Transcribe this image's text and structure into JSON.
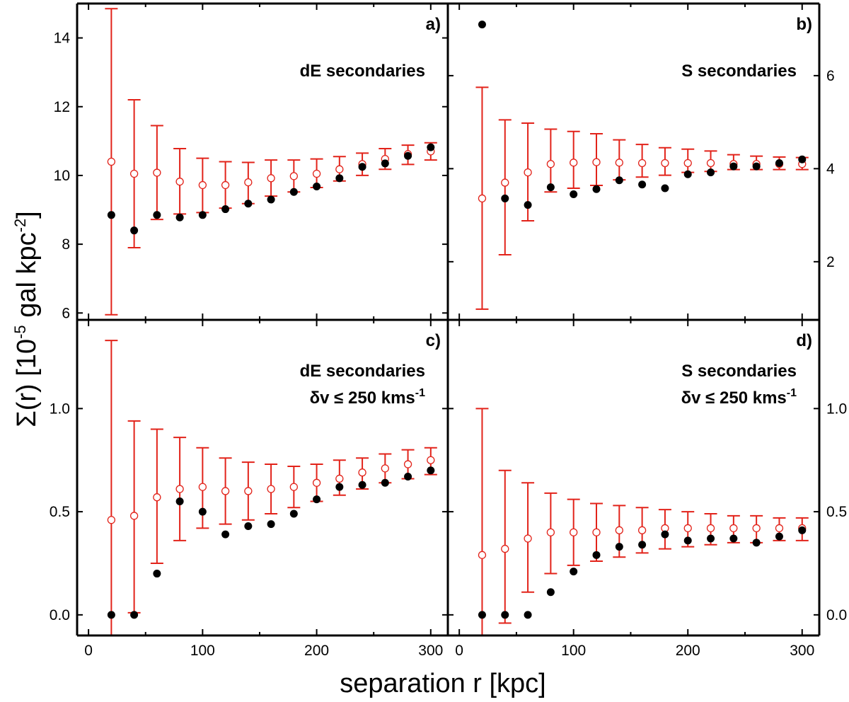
{
  "chart_data": {
    "type": "scatter",
    "xlabel": "separation r [kpc]",
    "ylabel": "Σ(r) [10⁻⁵ gal kpc⁻²]",
    "ylabel_parts": {
      "main": "Σ(r) [10",
      "exp1": "-5",
      "mid": " gal kpc",
      "exp2": "-2",
      "end": "]"
    },
    "x_ticks": [
      "0",
      "100",
      "200",
      "300"
    ],
    "xlim": [
      -10,
      315
    ],
    "panels": [
      {
        "id": "a",
        "letter": "a)",
        "title": [
          "dE secondaries"
        ],
        "ylim": [
          5.8,
          15.0
        ],
        "yticks": [
          6,
          8,
          10,
          12,
          14
        ],
        "ytick_labels": [
          "6",
          "8",
          "10",
          "12",
          "14"
        ],
        "ylabels_side": "left",
        "r": [
          20,
          40,
          60,
          80,
          100,
          120,
          140,
          160,
          180,
          200,
          220,
          240,
          260,
          280,
          300
        ],
        "observed": [
          8.85,
          8.4,
          8.85,
          8.78,
          8.85,
          9.02,
          9.18,
          9.3,
          9.52,
          9.68,
          9.92,
          10.25,
          10.35,
          10.57,
          10.82
        ],
        "model": [
          10.4,
          10.05,
          10.08,
          9.82,
          9.72,
          9.72,
          9.8,
          9.92,
          9.98,
          10.05,
          10.18,
          10.33,
          10.48,
          10.62,
          10.7
        ],
        "model_low": [
          5.95,
          7.9,
          8.72,
          8.88,
          8.92,
          9.05,
          9.18,
          9.4,
          9.52,
          9.65,
          9.84,
          10.0,
          10.18,
          10.32,
          10.45
        ],
        "model_high": [
          14.85,
          12.2,
          11.45,
          10.78,
          10.5,
          10.4,
          10.38,
          10.45,
          10.45,
          10.48,
          10.55,
          10.65,
          10.78,
          10.88,
          10.95
        ]
      },
      {
        "id": "b",
        "letter": "b)",
        "title": [
          "S secondaries"
        ],
        "ylim": [
          0.75,
          7.55
        ],
        "yticks": [
          2,
          4,
          6
        ],
        "ytick_labels": [
          "2",
          "4",
          "6"
        ],
        "ylabels_side": "right",
        "r": [
          20,
          40,
          60,
          80,
          100,
          120,
          140,
          160,
          180,
          200,
          220,
          240,
          260,
          280,
          300
        ],
        "observed": [
          7.1,
          3.36,
          3.22,
          3.6,
          3.45,
          3.56,
          3.75,
          3.66,
          3.58,
          3.88,
          3.92,
          4.05,
          4.05,
          4.12,
          4.2
        ],
        "model": [
          3.36,
          3.7,
          3.92,
          4.1,
          4.13,
          4.14,
          4.13,
          4.12,
          4.12,
          4.12,
          4.12,
          4.1,
          4.1,
          4.1,
          4.1
        ],
        "model_low": [
          0.98,
          2.15,
          2.88,
          3.5,
          3.58,
          3.64,
          3.76,
          3.82,
          3.86,
          3.92,
          3.94,
          3.98,
          3.98,
          3.98,
          3.98
        ],
        "model_high": [
          5.75,
          5.05,
          4.98,
          4.85,
          4.8,
          4.75,
          4.62,
          4.52,
          4.45,
          4.42,
          4.38,
          4.3,
          4.27,
          4.25,
          4.24
        ]
      },
      {
        "id": "c",
        "letter": "c)",
        "title": [
          "dE secondaries",
          "δv ≤ 250 kms",
          "-1"
        ],
        "ylim": [
          -0.1,
          1.43
        ],
        "yticks": [
          0.0,
          0.5,
          1.0
        ],
        "ytick_labels": [
          "0.0",
          "0.5",
          "1.0"
        ],
        "ylabels_side": "left",
        "r": [
          20,
          40,
          60,
          80,
          100,
          120,
          140,
          160,
          180,
          200,
          220,
          240,
          260,
          280,
          300
        ],
        "observed": [
          0.0,
          0.0,
          0.2,
          0.55,
          0.5,
          0.39,
          0.43,
          0.44,
          0.49,
          0.56,
          0.62,
          0.63,
          0.64,
          0.67,
          0.7
        ],
        "model": [
          0.46,
          0.48,
          0.57,
          0.61,
          0.62,
          0.6,
          0.6,
          0.61,
          0.62,
          0.64,
          0.66,
          0.69,
          0.71,
          0.73,
          0.75
        ],
        "model_low": [
          -0.1,
          0.01,
          0.25,
          0.36,
          0.42,
          0.44,
          0.46,
          0.49,
          0.52,
          0.55,
          0.58,
          0.61,
          0.64,
          0.66,
          0.68
        ],
        "model_high": [
          1.33,
          0.94,
          0.9,
          0.86,
          0.81,
          0.76,
          0.74,
          0.73,
          0.72,
          0.73,
          0.75,
          0.76,
          0.78,
          0.8,
          0.81
        ]
      },
      {
        "id": "d",
        "letter": "d)",
        "title": [
          "S secondaries",
          "δv ≤ 250 kms",
          "-1"
        ],
        "ylim": [
          -0.1,
          1.43
        ],
        "yticks": [
          0.0,
          0.5,
          1.0
        ],
        "ytick_labels": [
          "0.0",
          "0.5",
          "1.0"
        ],
        "ylabels_side": "right",
        "r": [
          20,
          40,
          60,
          80,
          100,
          120,
          140,
          160,
          180,
          200,
          220,
          240,
          260,
          280,
          300
        ],
        "observed": [
          0.0,
          0.0,
          0.0,
          0.11,
          0.21,
          0.29,
          0.33,
          0.34,
          0.39,
          0.36,
          0.37,
          0.37,
          0.35,
          0.38,
          0.41
        ],
        "model": [
          0.29,
          0.32,
          0.37,
          0.4,
          0.4,
          0.4,
          0.41,
          0.41,
          0.42,
          0.42,
          0.42,
          0.42,
          0.42,
          0.42,
          0.42
        ],
        "model_low": [
          -0.1,
          -0.04,
          0.11,
          0.2,
          0.24,
          0.26,
          0.28,
          0.3,
          0.32,
          0.33,
          0.34,
          0.35,
          0.35,
          0.36,
          0.36
        ],
        "model_high": [
          1.0,
          0.7,
          0.64,
          0.59,
          0.56,
          0.54,
          0.53,
          0.52,
          0.51,
          0.5,
          0.49,
          0.48,
          0.48,
          0.47,
          0.47
        ]
      }
    ]
  }
}
